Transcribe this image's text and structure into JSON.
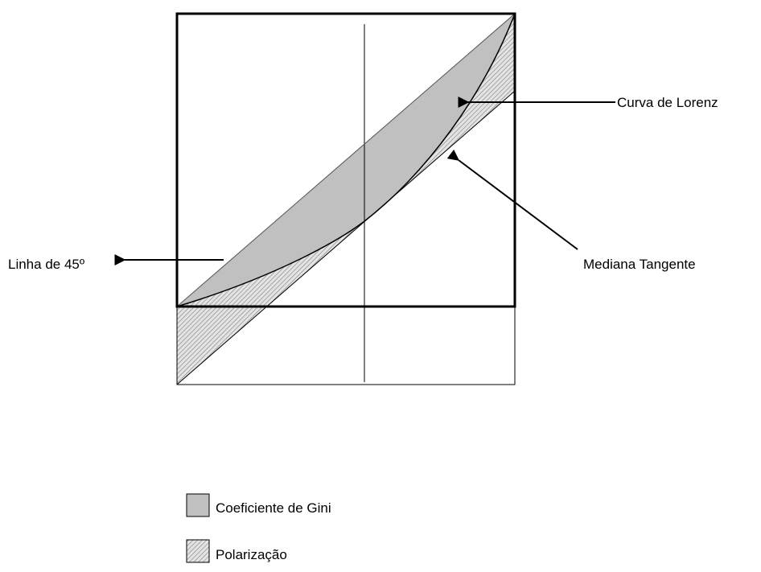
{
  "labels": {
    "lorenz_curve": "Curva de Lorenz",
    "median_tangent": "Mediana Tangente",
    "line_45": "Linha de 45º"
  },
  "legend": [
    {
      "label": "Coeficiente de Gini"
    },
    {
      "label": "Polarização"
    }
  ]
}
